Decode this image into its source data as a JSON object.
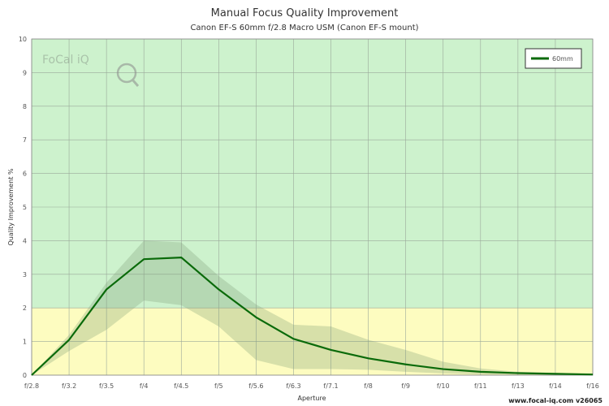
{
  "chart_data": {
    "type": "line",
    "title": "Manual Focus Quality Improvement",
    "subtitle": "Canon EF-S 60mm f/2.8 Macro USM (Canon EF-S mount)",
    "xlabel": "Aperture",
    "ylabel": "Quality Improvement %",
    "categories": [
      "f/2.8",
      "f/3.2",
      "f/3.5",
      "f/4",
      "f/4.5",
      "f/5",
      "f/5.6",
      "f/6.3",
      "f/7.1",
      "f/8",
      "f/9",
      "f/10",
      "f/11",
      "f/13",
      "f/14",
      "f/16"
    ],
    "ylim": [
      0,
      10
    ],
    "yticks": [
      "0",
      "1",
      "2",
      "3",
      "4",
      "5",
      "6",
      "7",
      "8",
      "9",
      "10"
    ],
    "grid": true,
    "legend_position": "top-right",
    "bands": [
      {
        "from": 0,
        "to": 2,
        "color": "#fdfcc0"
      },
      {
        "from": 2,
        "to": 10,
        "color": "#cdf2cd"
      }
    ],
    "series": [
      {
        "name": "60mm",
        "color": "#0a6a0a",
        "values": [
          0,
          1.05,
          2.55,
          3.45,
          3.5,
          2.55,
          1.72,
          1.08,
          0.75,
          0.5,
          0.32,
          0.18,
          0.1,
          0.06,
          0.04,
          0.02
        ],
        "upper": [
          0,
          1.2,
          2.75,
          4.0,
          3.95,
          2.95,
          2.1,
          1.5,
          1.45,
          1.05,
          0.75,
          0.4,
          0.2,
          0.1,
          0.07,
          0.04
        ],
        "lower": [
          0,
          0.72,
          1.35,
          2.22,
          2.08,
          1.45,
          0.45,
          0.18,
          0.18,
          0.16,
          0.1,
          0.05,
          0.02,
          0.01,
          0.01,
          0.0
        ]
      }
    ]
  },
  "logo": {
    "text": "FoCal iQ"
  },
  "footer": {
    "text": "www.focal-iq.com v26065"
  }
}
